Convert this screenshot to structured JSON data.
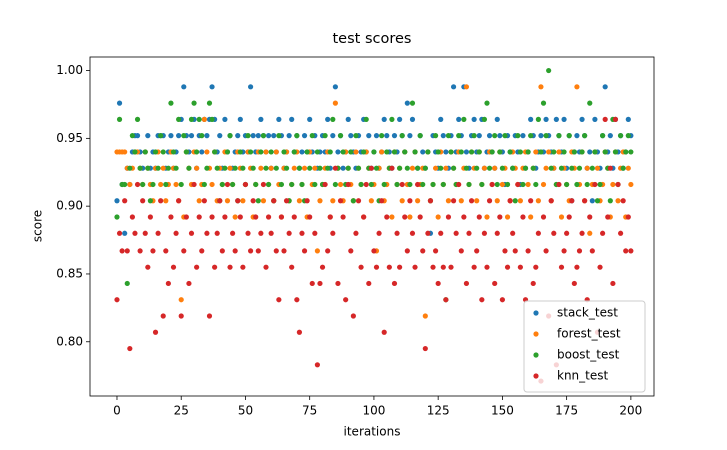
{
  "chart_data": {
    "type": "scatter",
    "title": "test scores",
    "x_label": "iterations",
    "y_label": "score",
    "x": [
      0,
      1,
      2,
      3,
      4,
      5,
      6,
      7,
      8,
      9,
      10,
      11,
      12,
      13,
      14,
      15,
      16,
      17,
      18,
      19,
      20,
      21,
      22,
      23,
      24,
      25,
      26,
      27,
      28,
      29,
      30,
      31,
      32,
      33,
      34,
      35,
      36,
      37,
      38,
      39,
      40,
      41,
      42,
      43,
      44,
      45,
      46,
      47,
      48,
      49,
      50,
      51,
      52,
      53,
      54,
      55,
      56,
      57,
      58,
      59,
      60,
      61,
      62,
      63,
      64,
      65,
      66,
      67,
      68,
      69,
      70,
      71,
      72,
      73,
      74,
      75,
      76,
      77,
      78,
      79,
      80,
      81,
      82,
      83,
      84,
      85,
      86,
      87,
      88,
      89,
      90,
      91,
      92,
      93,
      94,
      95,
      96,
      97,
      98,
      99,
      100,
      101,
      102,
      103,
      104,
      105,
      106,
      107,
      108,
      109,
      110,
      111,
      112,
      113,
      114,
      115,
      116,
      117,
      118,
      119,
      120,
      121,
      122,
      123,
      124,
      125,
      126,
      127,
      128,
      129,
      130,
      131,
      132,
      133,
      134,
      135,
      136,
      137,
      138,
      139,
      140,
      141,
      142,
      143,
      144,
      145,
      146,
      147,
      148,
      149,
      150,
      151,
      152,
      153,
      154,
      155,
      156,
      157,
      158,
      159,
      160,
      161,
      162,
      163,
      164,
      165,
      166,
      167,
      168,
      169,
      170,
      171,
      172,
      173,
      174,
      175,
      176,
      177,
      178,
      179,
      180,
      181,
      182,
      183,
      184,
      185,
      186,
      187,
      188,
      189,
      190,
      191,
      192,
      193,
      194,
      195,
      196,
      197,
      198,
      199,
      200
    ],
    "series": [
      {
        "name": "stack_test",
        "color": "#1f77b4",
        "values": [
          0.904,
          0.976,
          0.916,
          0.88,
          0.928,
          0.916,
          0.94,
          0.952,
          0.952,
          0.94,
          0.928,
          0.94,
          0.952,
          0.928,
          0.94,
          0.928,
          0.952,
          0.952,
          0.952,
          0.928,
          0.94,
          0.952,
          0.928,
          0.94,
          0.952,
          0.964,
          0.988,
          0.952,
          0.94,
          0.952,
          0.964,
          0.928,
          0.952,
          0.94,
          0.964,
          0.952,
          0.964,
          0.988,
          0.964,
          0.94,
          0.952,
          0.928,
          0.964,
          0.94,
          0.952,
          0.928,
          0.94,
          0.952,
          0.964,
          0.94,
          0.952,
          0.94,
          0.988,
          0.952,
          0.94,
          0.952,
          0.964,
          0.952,
          0.94,
          0.952,
          0.928,
          0.952,
          0.94,
          0.964,
          0.952,
          0.928,
          0.94,
          0.952,
          0.964,
          0.94,
          0.952,
          0.928,
          0.94,
          0.952,
          0.94,
          0.964,
          0.94,
          0.952,
          0.928,
          0.94,
          0.952,
          0.94,
          0.964,
          0.928,
          0.952,
          0.988,
          0.94,
          0.952,
          0.928,
          0.94,
          0.964,
          0.952,
          0.94,
          0.928,
          0.952,
          0.94,
          0.964,
          0.94,
          0.952,
          0.928,
          0.94,
          0.952,
          0.928,
          0.94,
          0.964,
          0.952,
          0.94,
          0.928,
          0.952,
          0.94,
          0.964,
          0.952,
          0.94,
          0.976,
          0.952,
          0.964,
          0.94,
          0.928,
          0.952,
          0.94,
          0.928,
          0.94,
          0.88,
          0.952,
          0.94,
          0.928,
          0.964,
          0.952,
          0.94,
          0.928,
          0.952,
          0.988,
          0.94,
          0.964,
          0.952,
          0.988,
          0.94,
          0.928,
          0.952,
          0.964,
          0.94,
          0.952,
          0.964,
          0.928,
          0.94,
          0.952,
          0.94,
          0.928,
          0.964,
          0.952,
          0.94,
          0.916,
          0.952,
          0.94,
          0.928,
          0.952,
          0.94,
          0.916,
          0.952,
          0.928,
          0.94,
          0.964,
          0.952,
          0.928,
          0.94,
          0.952,
          0.94,
          0.964,
          0.952,
          0.94,
          0.928,
          0.964,
          0.952,
          0.94,
          0.964,
          0.928,
          0.952,
          0.904,
          0.94,
          0.952,
          0.94,
          0.964,
          0.952,
          0.928,
          0.94,
          0.904,
          0.964,
          0.94,
          0.928,
          0.952,
          0.988,
          0.94,
          0.952,
          0.928,
          0.964,
          0.94,
          0.952,
          0.928,
          0.94,
          0.964,
          0.952
        ]
      },
      {
        "name": "forest_test",
        "color": "#ff7f0e",
        "values": [
          0.94,
          0.94,
          0.94,
          0.94,
          0.928,
          0.916,
          0.928,
          0.94,
          0.94,
          0.928,
          0.916,
          0.94,
          0.928,
          0.916,
          0.904,
          0.928,
          0.94,
          0.916,
          0.928,
          0.904,
          0.916,
          0.94,
          0.928,
          0.916,
          0.904,
          0.831,
          0.892,
          0.94,
          0.928,
          0.916,
          0.94,
          0.928,
          0.904,
          0.916,
          0.964,
          0.94,
          0.928,
          0.916,
          0.94,
          0.904,
          0.928,
          0.916,
          0.94,
          0.904,
          0.928,
          0.916,
          0.892,
          0.94,
          0.928,
          0.904,
          0.916,
          0.94,
          0.928,
          0.892,
          0.916,
          0.94,
          0.928,
          0.904,
          0.94,
          0.916,
          0.928,
          0.904,
          0.94,
          0.916,
          0.892,
          0.928,
          0.94,
          0.904,
          0.916,
          0.928,
          0.94,
          0.904,
          0.916,
          0.928,
          0.892,
          0.94,
          0.916,
          0.928,
          0.867,
          0.904,
          0.916,
          0.928,
          0.94,
          0.892,
          0.904,
          0.976,
          0.928,
          0.916,
          0.904,
          0.94,
          0.928,
          0.916,
          0.904,
          0.94,
          0.928,
          0.916,
          0.892,
          0.94,
          0.928,
          0.904,
          0.916,
          0.867,
          0.928,
          0.94,
          0.904,
          0.916,
          0.928,
          0.892,
          0.94,
          0.916,
          0.928,
          0.904,
          0.94,
          0.916,
          0.892,
          0.928,
          0.94,
          0.904,
          0.916,
          0.928,
          0.819,
          0.94,
          0.904,
          0.916,
          0.928,
          0.892,
          0.94,
          0.916,
          0.928,
          0.904,
          0.94,
          0.928,
          0.916,
          0.94,
          0.904,
          0.928,
          0.988,
          0.916,
          0.94,
          0.928,
          0.904,
          0.94,
          0.916,
          0.928,
          0.892,
          0.94,
          0.916,
          0.928,
          0.904,
          0.94,
          0.916,
          0.928,
          0.892,
          0.904,
          0.94,
          0.928,
          0.916,
          0.904,
          0.928,
          0.94,
          0.916,
          0.892,
          0.928,
          0.94,
          0.904,
          0.988,
          0.916,
          0.928,
          0.94,
          0.904,
          0.928,
          0.916,
          0.94,
          0.892,
          0.928,
          0.916,
          0.904,
          0.94,
          0.928,
          0.988,
          0.916,
          0.94,
          0.904,
          0.928,
          0.88,
          0.916,
          0.94,
          0.928,
          0.904,
          0.916,
          0.94,
          0.928,
          0.892,
          0.916,
          0.94,
          0.904,
          0.928,
          0.94,
          0.892,
          0.928,
          0.916
        ]
      },
      {
        "name": "boost_test",
        "color": "#2ca02c",
        "values": [
          0.892,
          0.964,
          0.916,
          0.916,
          0.843,
          0.928,
          0.952,
          0.94,
          0.964,
          0.928,
          0.916,
          0.94,
          0.928,
          0.904,
          0.916,
          0.94,
          0.928,
          0.952,
          0.94,
          0.916,
          0.928,
          0.976,
          0.94,
          0.928,
          0.964,
          0.916,
          0.952,
          0.94,
          0.928,
          0.964,
          0.976,
          0.94,
          0.964,
          0.952,
          0.916,
          0.928,
          0.976,
          0.964,
          0.94,
          0.928,
          0.904,
          0.916,
          0.928,
          0.94,
          0.952,
          0.916,
          0.928,
          0.904,
          0.94,
          0.928,
          0.916,
          0.952,
          0.94,
          0.928,
          0.916,
          0.904,
          0.94,
          0.952,
          0.928,
          0.916,
          0.94,
          0.904,
          0.928,
          0.952,
          0.916,
          0.94,
          0.928,
          0.904,
          0.916,
          0.94,
          0.952,
          0.928,
          0.916,
          0.904,
          0.94,
          0.928,
          0.952,
          0.916,
          0.94,
          0.928,
          0.916,
          0.952,
          0.928,
          0.94,
          0.964,
          0.916,
          0.928,
          0.952,
          0.94,
          0.916,
          0.928,
          0.94,
          0.904,
          0.952,
          0.928,
          0.916,
          0.94,
          0.964,
          0.928,
          0.916,
          0.94,
          0.928,
          0.904,
          0.952,
          0.916,
          0.94,
          0.928,
          0.964,
          0.94,
          0.916,
          0.928,
          0.952,
          0.94,
          0.928,
          0.916,
          0.976,
          0.94,
          0.928,
          0.952,
          0.916,
          0.928,
          0.94,
          0.904,
          0.916,
          0.952,
          0.94,
          0.928,
          0.916,
          0.831,
          0.952,
          0.94,
          0.928,
          0.916,
          0.952,
          0.94,
          0.964,
          0.928,
          0.916,
          0.94,
          0.952,
          0.928,
          0.94,
          0.916,
          0.964,
          0.976,
          0.928,
          0.94,
          0.952,
          0.916,
          0.94,
          0.928,
          0.952,
          0.916,
          0.94,
          0.928,
          0.904,
          0.952,
          0.94,
          0.916,
          0.928,
          0.94,
          0.952,
          0.928,
          0.916,
          0.964,
          0.94,
          0.976,
          0.952,
          1.0,
          0.928,
          0.94,
          0.916,
          0.952,
          0.928,
          0.94,
          0.916,
          0.952,
          0.928,
          0.94,
          0.916,
          0.928,
          0.94,
          0.952,
          0.916,
          0.976,
          0.928,
          0.94,
          0.904,
          0.916,
          0.952,
          0.94,
          0.928,
          0.904,
          0.964,
          0.94,
          0.916,
          0.952,
          0.928,
          0.94,
          0.952,
          0.94
        ]
      },
      {
        "name": "knn_test",
        "color": "#d62728",
        "values": [
          0.831,
          0.88,
          0.867,
          0.904,
          0.867,
          0.795,
          0.892,
          0.88,
          0.916,
          0.867,
          0.904,
          0.88,
          0.855,
          0.892,
          0.867,
          0.807,
          0.88,
          0.904,
          0.819,
          0.867,
          0.843,
          0.892,
          0.855,
          0.88,
          0.904,
          0.819,
          0.867,
          0.892,
          0.843,
          0.88,
          0.916,
          0.855,
          0.892,
          0.867,
          0.904,
          0.88,
          0.819,
          0.892,
          0.855,
          0.88,
          0.904,
          0.867,
          0.892,
          0.916,
          0.855,
          0.88,
          0.867,
          0.904,
          0.892,
          0.855,
          0.916,
          0.88,
          0.867,
          0.904,
          0.892,
          0.867,
          0.88,
          0.916,
          0.855,
          0.892,
          0.88,
          0.904,
          0.867,
          0.831,
          0.892,
          0.867,
          0.904,
          0.88,
          0.855,
          0.892,
          0.831,
          0.807,
          0.88,
          0.867,
          0.904,
          0.892,
          0.843,
          0.88,
          0.783,
          0.843,
          0.855,
          0.916,
          0.867,
          0.892,
          0.88,
          0.928,
          0.843,
          0.904,
          0.892,
          0.831,
          0.916,
          0.867,
          0.819,
          0.88,
          0.904,
          0.855,
          0.892,
          0.916,
          0.843,
          0.928,
          0.867,
          0.855,
          0.88,
          0.904,
          0.807,
          0.892,
          0.855,
          0.928,
          0.843,
          0.88,
          0.855,
          0.916,
          0.892,
          0.867,
          0.904,
          0.88,
          0.855,
          0.916,
          0.892,
          0.867,
          0.795,
          0.88,
          0.904,
          0.855,
          0.867,
          0.843,
          0.88,
          0.855,
          0.831,
          0.892,
          0.855,
          0.904,
          0.88,
          0.916,
          0.867,
          0.892,
          0.843,
          0.88,
          0.904,
          0.855,
          0.867,
          0.892,
          0.831,
          0.88,
          0.855,
          0.904,
          0.916,
          0.843,
          0.88,
          0.892,
          0.831,
          0.867,
          0.855,
          0.904,
          0.88,
          0.867,
          0.916,
          0.855,
          0.892,
          0.831,
          0.867,
          0.904,
          0.843,
          0.855,
          0.88,
          0.771,
          0.892,
          0.867,
          0.819,
          0.904,
          0.88,
          0.783,
          0.916,
          0.855,
          0.867,
          0.88,
          0.892,
          0.904,
          0.843,
          0.855,
          0.867,
          0.88,
          0.904,
          0.831,
          0.892,
          0.867,
          0.916,
          0.807,
          0.855,
          0.88,
          0.964,
          0.892,
          0.928,
          0.843,
          0.964,
          0.916,
          0.88,
          0.904,
          0.867,
          0.892,
          0.867
        ]
      }
    ],
    "xlim": [
      -10.5,
      209
    ],
    "ylim": [
      0.76,
      1.01
    ],
    "xticks": [
      0,
      25,
      50,
      75,
      100,
      125,
      150,
      175,
      200
    ],
    "yticks": [
      {
        "value": 0.8,
        "label": "0.80"
      },
      {
        "value": 0.85,
        "label": "0.85"
      },
      {
        "value": 0.9,
        "label": "0.90"
      },
      {
        "value": 0.95,
        "label": "0.95"
      },
      {
        "value": 1.0,
        "label": "1.00"
      }
    ],
    "legend": "lower right"
  }
}
